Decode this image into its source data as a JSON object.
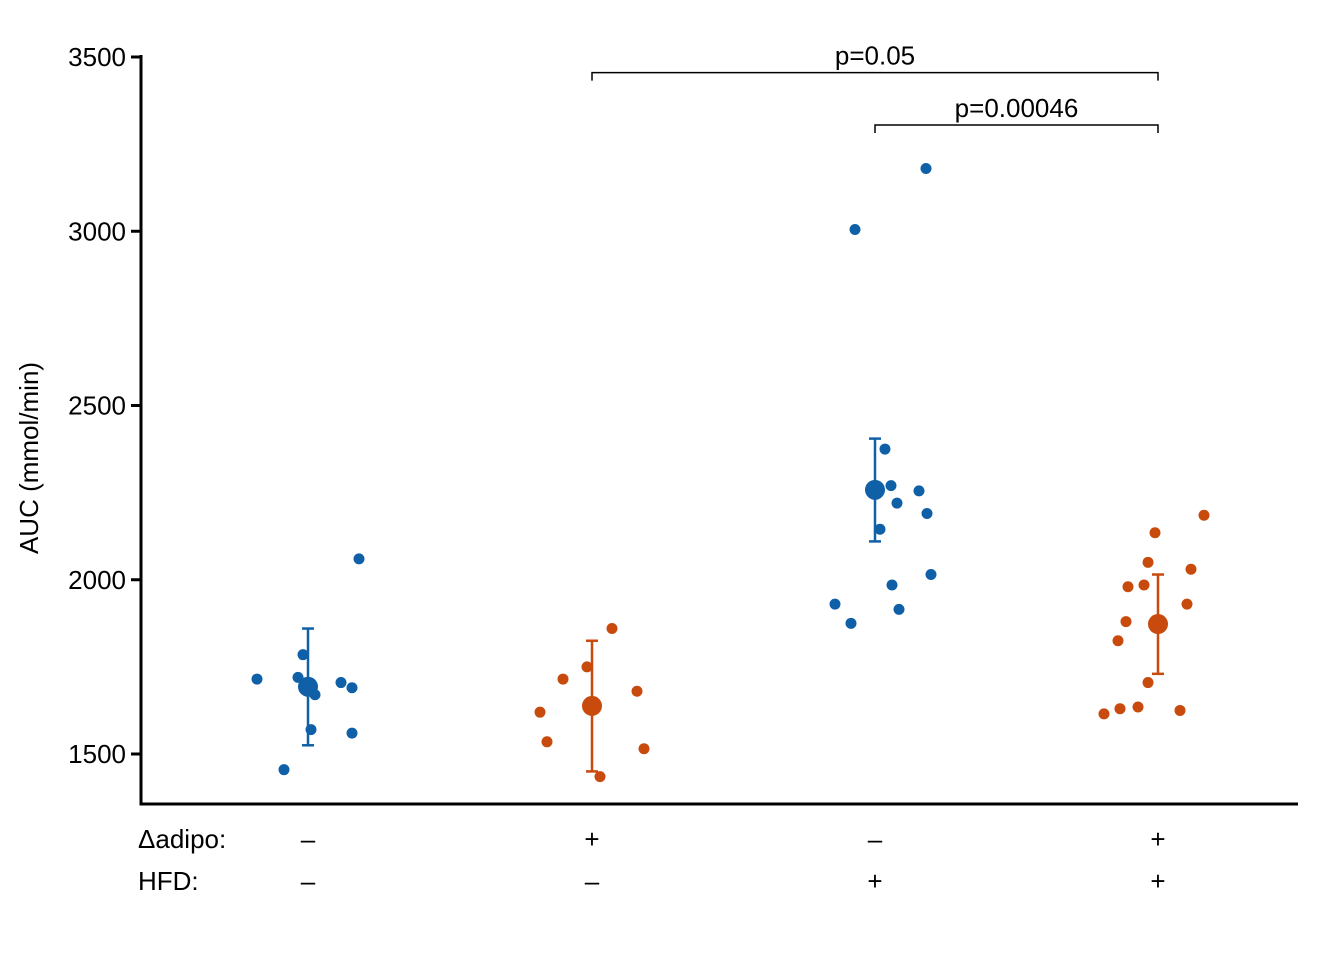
{
  "chart_data": {
    "type": "scatter",
    "title": "",
    "ylabel": "AUC (mmol/min)",
    "xlabel": "",
    "ylim": [
      1350,
      3500
    ],
    "yticks": [
      1500,
      2000,
      2500,
      3000,
      3500
    ],
    "grid": false,
    "legend": "none",
    "colors": {
      "blue": "#1060A8",
      "orange": "#C84A0C"
    },
    "row_labels": [
      "Δadipo:",
      "HFD:"
    ],
    "groups": [
      {
        "conditions": [
          "–",
          "–"
        ],
        "color": "#1060A8",
        "mean": 1693,
        "error": [
          1525,
          1860
        ],
        "points": [
          1715,
          1455,
          1720,
          1785,
          1570,
          1670,
          1705,
          1690,
          1560,
          2060
        ]
      },
      {
        "conditions": [
          "+",
          "–"
        ],
        "color": "#C84A0C",
        "mean": 1638,
        "error": [
          1450,
          1825
        ],
        "points": [
          1620,
          1535,
          1715,
          1750,
          1435,
          1860,
          1680,
          1515
        ]
      },
      {
        "conditions": [
          "–",
          "+"
        ],
        "color": "#1060A8",
        "mean": 2258,
        "error": [
          2110,
          2405
        ],
        "points": [
          1930,
          1875,
          3005,
          2145,
          2375,
          1985,
          2270,
          2220,
          1915,
          3180,
          2255,
          2190,
          2015
        ]
      },
      {
        "conditions": [
          "+",
          "+"
        ],
        "color": "#C84A0C",
        "mean": 1873,
        "error": [
          1730,
          2015
        ],
        "points": [
          1615,
          1825,
          1630,
          1880,
          1980,
          1635,
          1985,
          1705,
          2050,
          2135,
          1625,
          1930,
          2030,
          2185
        ]
      }
    ],
    "comparisons": [
      {
        "label": "p=0.05",
        "from": 1,
        "to": 3,
        "y": 3455
      },
      {
        "label": "p=0.00046",
        "from": 2,
        "to": 3,
        "y": 3305
      }
    ]
  }
}
